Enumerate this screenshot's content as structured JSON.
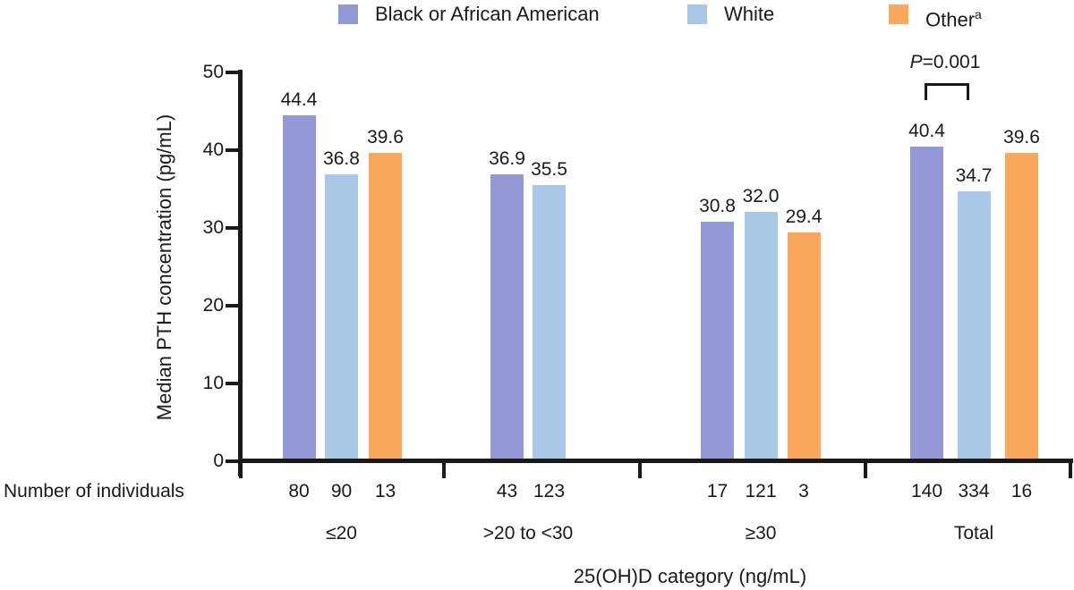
{
  "chart_data": {
    "type": "bar",
    "title": "",
    "ylabel": "Median PTH concentration (pg/mL)",
    "xlabel": "25(OH)D category (ng/mL)",
    "ylim": [
      0,
      50
    ],
    "yticks": [
      0,
      10,
      20,
      30,
      40,
      50
    ],
    "grid": false,
    "legend_position": "top",
    "categories": [
      "≤20",
      ">20 to <30",
      "≥30",
      "Total"
    ],
    "series": [
      {
        "name": "Black or African American",
        "name_sup": "",
        "color": "#9498d4",
        "values": [
          44.4,
          36.9,
          30.8,
          40.4
        ],
        "counts": [
          80,
          43,
          17,
          140
        ]
      },
      {
        "name": "White",
        "name_sup": "",
        "color": "#a9c8e8",
        "values": [
          36.8,
          35.5,
          32.0,
          34.7
        ],
        "counts": [
          90,
          123,
          121,
          334
        ]
      },
      {
        "name": "Other",
        "name_sup": "a",
        "color": "#fba85c",
        "values": [
          39.6,
          null,
          29.4,
          39.6
        ],
        "counts": [
          13,
          null,
          3,
          16
        ]
      }
    ],
    "counts_row_label": "Number of individuals",
    "annotation": {
      "p_label": "P",
      "p_value": "=0.001",
      "location": "Total",
      "compares": [
        "Black or African American",
        "White"
      ]
    }
  }
}
